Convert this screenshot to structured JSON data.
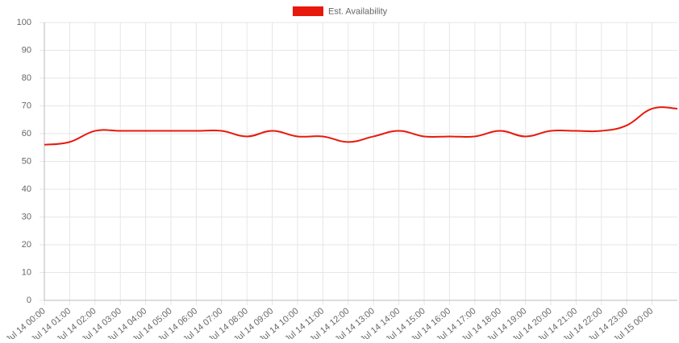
{
  "chart_data": {
    "type": "line",
    "categories": [
      "Jul 14 00:00",
      "Jul 14 01:00",
      "Jul 14 02:00",
      "Jul 14 03:00",
      "Jul 14 04:00",
      "Jul 14 05:00",
      "Jul 14 06:00",
      "Jul 14 07:00",
      "Jul 14 08:00",
      "Jul 14 09:00",
      "Jul 14 10:00",
      "Jul 14 11:00",
      "Jul 14 12:00",
      "Jul 14 13:00",
      "Jul 14 14:00",
      "Jul 14 15:00",
      "Jul 14 16:00",
      "Jul 14 17:00",
      "Jul 14 18:00",
      "Jul 14 19:00",
      "Jul 14 20:00",
      "Jul 14 21:00",
      "Jul 14 22:00",
      "Jul 14 23:00",
      "Jul 15 00:00",
      null
    ],
    "series": [
      {
        "name": "Est. Availability",
        "color": "#e8180c",
        "values": [
          56,
          57,
          61,
          61,
          61,
          61,
          61,
          61,
          59,
          61,
          59,
          59,
          57,
          59,
          61,
          59,
          59,
          59,
          61,
          59,
          61,
          61,
          61,
          63,
          69,
          69
        ]
      }
    ],
    "ylim": [
      0,
      100
    ],
    "yticks": [
      0,
      10,
      20,
      30,
      40,
      50,
      60,
      70,
      80,
      90,
      100
    ],
    "grid": true,
    "legend": "top"
  }
}
